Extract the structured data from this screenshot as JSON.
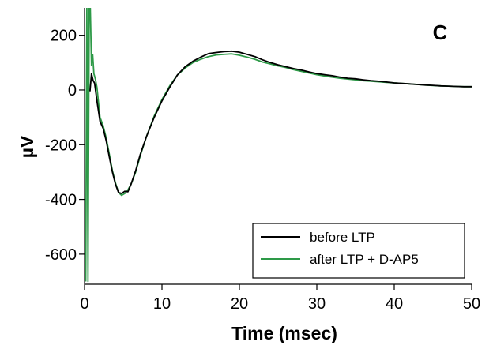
{
  "chart_data": {
    "type": "line",
    "panel_label": "C",
    "xlabel": "Time (msec)",
    "ylabel": "µV",
    "xlim": [
      0,
      50
    ],
    "ylim": [
      -710,
      300
    ],
    "x_ticks": [
      0,
      10,
      20,
      30,
      40,
      50
    ],
    "y_ticks": [
      200,
      0,
      -200,
      -400,
      -600
    ],
    "legend_position": "bottom-right",
    "series": [
      {
        "name": "before LTP",
        "color": "#000000",
        "x": [
          0.7,
          0.9,
          1.1,
          1.3,
          1.6,
          2.0,
          2.4,
          2.8,
          3.2,
          3.6,
          4.0,
          4.4,
          4.8,
          5.2,
          5.6,
          6.0,
          6.6,
          7.2,
          8.0,
          9.0,
          10.0,
          11.0,
          12.0,
          13.0,
          14.0,
          15.0,
          16.0,
          17.0,
          18.0,
          19.0,
          20.0,
          21.0,
          22.0,
          23.0,
          24.0,
          25.0,
          26.0,
          27.0,
          28.0,
          29.0,
          30.0,
          31.0,
          32.0,
          33.0,
          34.0,
          35.0,
          36.0,
          37.0,
          38.0,
          39.0,
          40.0,
          41.0,
          42.0,
          43.0,
          44.0,
          45.0,
          46.0,
          47.0,
          48.0,
          49.0,
          50.0
        ],
        "y": [
          -5,
          60,
          35,
          25,
          -40,
          -115,
          -140,
          -185,
          -245,
          -300,
          -345,
          -375,
          -378,
          -370,
          -372,
          -345,
          -295,
          -235,
          -170,
          -100,
          -40,
          10,
          55,
          85,
          105,
          120,
          133,
          137,
          140,
          142,
          138,
          130,
          122,
          110,
          100,
          92,
          85,
          78,
          73,
          66,
          60,
          56,
          52,
          47,
          43,
          41,
          37,
          34,
          32,
          29,
          26,
          24,
          22,
          20,
          18,
          17,
          15,
          14,
          13,
          12,
          12
        ]
      },
      {
        "name": "after LTP + D-AP5",
        "color": "#2e9a48",
        "x": [
          0.15,
          0.3,
          0.45,
          0.6,
          0.75,
          0.9,
          1.05,
          1.2,
          1.4,
          1.6,
          2.0,
          2.4,
          2.8,
          3.2,
          3.6,
          4.0,
          4.4,
          4.8,
          5.2,
          5.6,
          6.0,
          6.6,
          7.2,
          8.0,
          9.0,
          10.0,
          11.0,
          12.0,
          13.0,
          14.0,
          15.0,
          16.0,
          17.0,
          18.0,
          19.0,
          20.0,
          21.0,
          22.0,
          23.0,
          24.0,
          25.0,
          26.0,
          27.0,
          28.0,
          29.0,
          30.0,
          31.0,
          32.0,
          33.0,
          34.0,
          35.0,
          36.0,
          37.0,
          38.0,
          39.0,
          40.0,
          41.0,
          42.0,
          43.0,
          44.0,
          45.0,
          46.0,
          47.0,
          48.0,
          49.0,
          50.0
        ],
        "y": [
          -700,
          300,
          -700,
          300,
          300,
          90,
          130,
          60,
          40,
          10,
          -100,
          -130,
          -175,
          -235,
          -295,
          -340,
          -375,
          -385,
          -378,
          -365,
          -345,
          -300,
          -240,
          -170,
          -95,
          -35,
          15,
          55,
          80,
          100,
          112,
          122,
          128,
          130,
          132,
          127,
          120,
          112,
          102,
          95,
          88,
          82,
          74,
          68,
          62,
          56,
          51,
          47,
          43,
          40,
          37,
          34,
          32,
          30,
          28,
          26,
          24,
          22,
          20,
          18,
          16,
          15,
          14,
          13,
          12,
          12
        ]
      }
    ]
  }
}
